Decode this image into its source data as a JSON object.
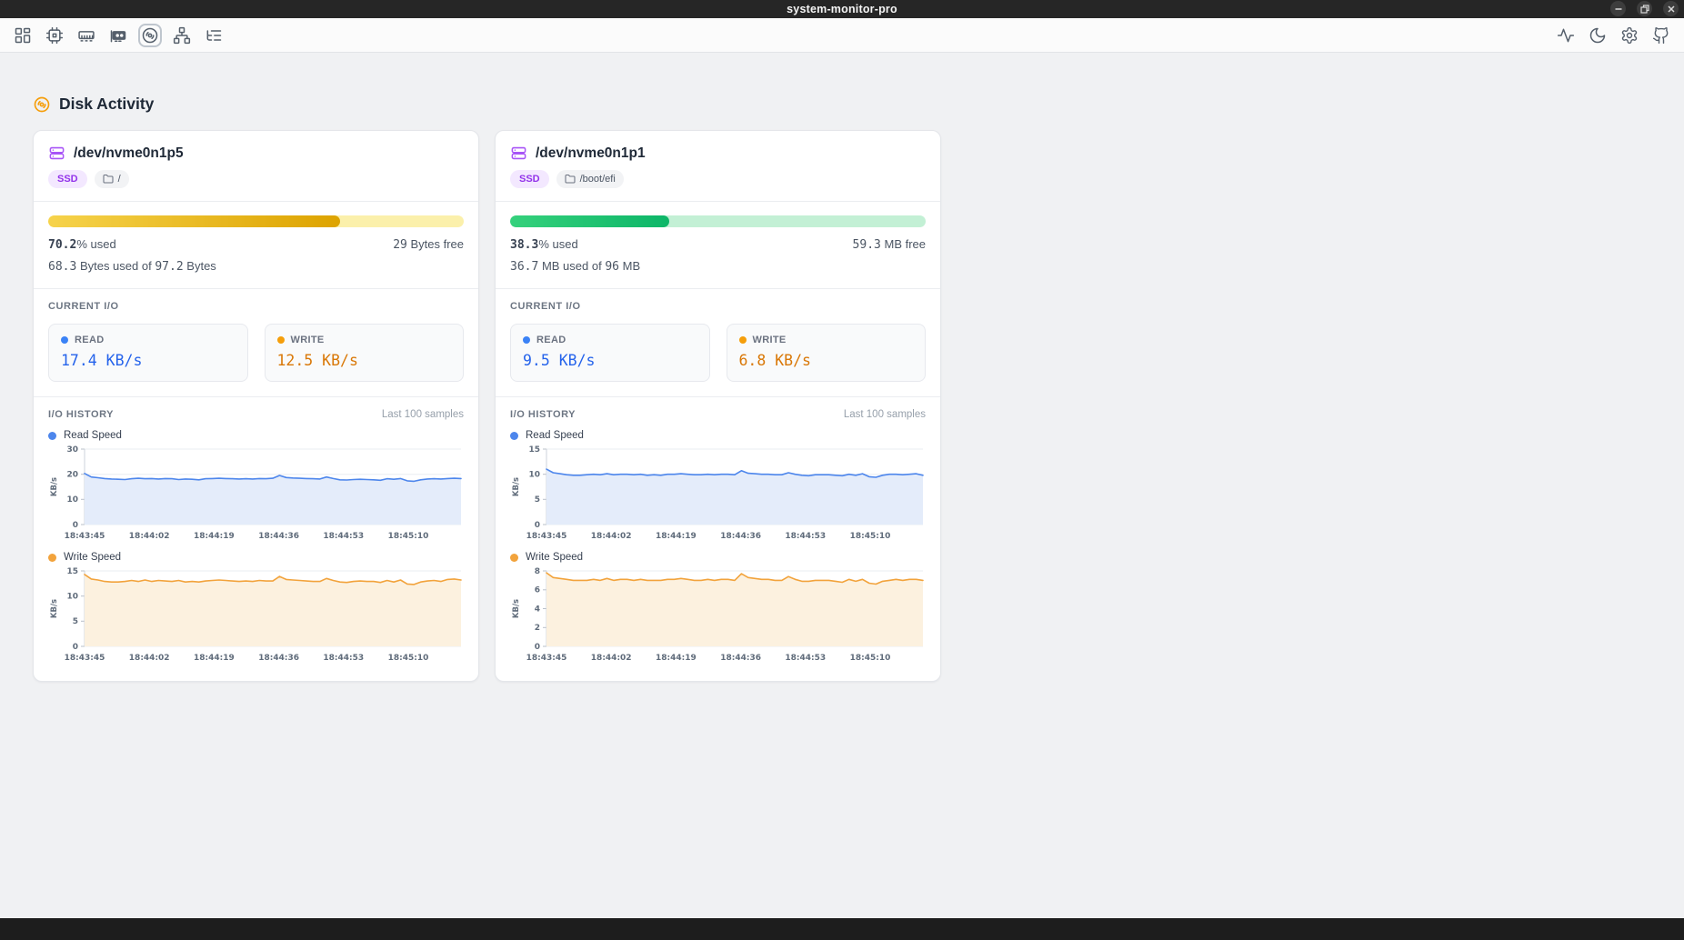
{
  "window": {
    "title": "system-monitor-pro",
    "controls": [
      "minimize-icon",
      "maximize-icon",
      "close-icon"
    ]
  },
  "toolbar": {
    "left_icons": [
      "dashboard-icon",
      "cpu-icon",
      "memory-icon",
      "gpu-icon",
      "disk-icon",
      "network-icon",
      "process-tree-icon"
    ],
    "active_icon": "disk-icon",
    "right_icons": [
      "activity-icon",
      "dark-mode-icon",
      "settings-icon",
      "github-icon"
    ]
  },
  "page": {
    "title": "Disk Activity"
  },
  "disks": [
    {
      "device": "/dev/nvme0n1p5",
      "type_badge": "SSD",
      "mount": "/",
      "usage": {
        "bar_width": "70.2%",
        "bar_fill": "linear-gradient(90deg, #f6d34b, #dda300)",
        "bar_track": "#fbf0ab",
        "percent_num": "70.2",
        "percent_label": "% used",
        "free_num": "29",
        "free_label": "Bytes free",
        "used_num": "68.3",
        "used_mid": "Bytes used of",
        "total_num": "97.2",
        "total_unit": "Bytes"
      },
      "current_io": {
        "label": "CURRENT I/O",
        "read": {
          "label": "READ",
          "value": "17.4 KB/s",
          "color": "#2563eb",
          "dot": "#3b82f6"
        },
        "write": {
          "label": "WRITE",
          "value": "12.5 KB/s",
          "color": "#d97706",
          "dot": "#f59e0b"
        }
      },
      "history": {
        "label": "I/O HISTORY",
        "samples": "Last 100 samples"
      }
    },
    {
      "device": "/dev/nvme0n1p1",
      "type_badge": "SSD",
      "mount": "/boot/efi",
      "usage": {
        "bar_width": "38.3%",
        "bar_fill": "linear-gradient(90deg, #35d17c, #0db668)",
        "bar_track": "#c3f0d5",
        "percent_num": "38.3",
        "percent_label": "% used",
        "free_num": "59.3",
        "free_label": "MB free",
        "used_num": "36.7",
        "used_mid": "MB used of",
        "total_num": "96",
        "total_unit": "MB"
      },
      "current_io": {
        "label": "CURRENT I/O",
        "read": {
          "label": "READ",
          "value": "9.5 KB/s",
          "color": "#2563eb",
          "dot": "#3b82f6"
        },
        "write": {
          "label": "WRITE",
          "value": "6.8 KB/s",
          "color": "#d97706",
          "dot": "#f59e0b"
        }
      },
      "history": {
        "label": "I/O HISTORY",
        "samples": "Last 100 samples"
      }
    }
  ],
  "chart_data": [
    {
      "type": "area",
      "title": "Read Speed",
      "disk": "/dev/nvme0n1p5",
      "color": "#4d86ec",
      "fill": "#e4ecfa",
      "ylabel": "KB/s",
      "ymin": 0,
      "ymax": 30,
      "yticks": [
        0,
        10,
        20,
        30
      ],
      "xticks": [
        "18:43:45",
        "18:44:02",
        "18:44:19",
        "18:44:36",
        "18:44:53",
        "18:45:10"
      ],
      "values": [
        20.3,
        18.9,
        18.6,
        18.3,
        18.1,
        18.0,
        17.9,
        18.2,
        18.4,
        18.2,
        18.3,
        18.1,
        18.3,
        18.2,
        17.9,
        18.1,
        18.0,
        17.8,
        18.2,
        18.3,
        18.4,
        18.3,
        18.2,
        18.1,
        18.2,
        18.1,
        18.3,
        18.2,
        18.4,
        19.5,
        18.7,
        18.5,
        18.4,
        18.3,
        18.2,
        18.1,
        18.9,
        18.3,
        17.8,
        17.7,
        17.9,
        18.0,
        17.9,
        17.8,
        17.6,
        18.2,
        18.0,
        18.3,
        17.4,
        17.2,
        17.8,
        18.1,
        18.2,
        18.1,
        18.3,
        18.4,
        18.3
      ]
    },
    {
      "type": "area",
      "title": "Write Speed",
      "disk": "/dev/nvme0n1p5",
      "color": "#f2a33c",
      "fill": "#fcf1df",
      "ylabel": "KB/s",
      "ymin": 0,
      "ymax": 15,
      "yticks": [
        0,
        5,
        10,
        15
      ],
      "xticks": [
        "18:43:45",
        "18:44:02",
        "18:44:19",
        "18:44:36",
        "18:44:53",
        "18:45:10"
      ],
      "values": [
        14.3,
        13.4,
        13.2,
        12.9,
        12.8,
        12.8,
        12.9,
        13.1,
        12.9,
        13.2,
        12.9,
        13.1,
        13.0,
        12.9,
        13.1,
        12.8,
        12.9,
        12.8,
        13.0,
        13.1,
        13.2,
        13.1,
        13.0,
        12.9,
        13.0,
        12.9,
        13.1,
        13.0,
        13.0,
        13.9,
        13.3,
        13.2,
        13.1,
        13.0,
        12.9,
        12.9,
        13.5,
        13.1,
        12.8,
        12.7,
        12.9,
        13.0,
        12.9,
        12.9,
        12.7,
        13.1,
        12.8,
        13.2,
        12.4,
        12.3,
        12.8,
        13.0,
        13.1,
        12.9,
        13.3,
        13.4,
        13.2
      ]
    },
    {
      "type": "area",
      "title": "Read Speed",
      "disk": "/dev/nvme0n1p1",
      "color": "#4d86ec",
      "fill": "#e4ecfa",
      "ylabel": "KB/s",
      "ymin": 0,
      "ymax": 15,
      "yticks": [
        0,
        5,
        10,
        15
      ],
      "xticks": [
        "18:43:45",
        "18:44:02",
        "18:44:19",
        "18:44:36",
        "18:44:53",
        "18:45:10"
      ],
      "values": [
        11.0,
        10.3,
        10.1,
        9.9,
        9.8,
        9.8,
        9.9,
        10.0,
        9.9,
        10.1,
        9.9,
        10.0,
        10.0,
        9.9,
        10.0,
        9.8,
        9.9,
        9.8,
        10.0,
        10.0,
        10.1,
        10.0,
        9.9,
        9.9,
        10.0,
        9.9,
        10.0,
        10.0,
        9.9,
        10.7,
        10.2,
        10.1,
        10.0,
        10.0,
        9.9,
        9.9,
        10.3,
        10.0,
        9.8,
        9.7,
        9.9,
        9.9,
        9.9,
        9.8,
        9.7,
        10.0,
        9.8,
        10.1,
        9.5,
        9.4,
        9.8,
        10.0,
        10.0,
        9.9,
        10.0,
        10.1,
        9.8
      ]
    },
    {
      "type": "area",
      "title": "Write Speed",
      "disk": "/dev/nvme0n1p1",
      "color": "#f2a33c",
      "fill": "#fcf1df",
      "ylabel": "KB/s",
      "ymin": 0,
      "ymax": 8,
      "yticks": [
        0,
        2,
        4,
        6,
        8
      ],
      "xticks": [
        "18:43:45",
        "18:44:02",
        "18:44:19",
        "18:44:36",
        "18:44:53",
        "18:45:10"
      ],
      "values": [
        7.8,
        7.3,
        7.2,
        7.1,
        7.0,
        7.0,
        7.0,
        7.1,
        7.0,
        7.2,
        7.0,
        7.1,
        7.1,
        7.0,
        7.1,
        7.0,
        7.0,
        7.0,
        7.1,
        7.1,
        7.2,
        7.1,
        7.0,
        7.0,
        7.1,
        7.0,
        7.1,
        7.1,
        7.0,
        7.7,
        7.3,
        7.2,
        7.1,
        7.1,
        7.0,
        7.0,
        7.4,
        7.1,
        6.9,
        6.9,
        7.0,
        7.0,
        7.0,
        6.9,
        6.8,
        7.1,
        6.9,
        7.1,
        6.7,
        6.6,
        6.9,
        7.0,
        7.1,
        7.0,
        7.1,
        7.1,
        7.0
      ]
    }
  ]
}
